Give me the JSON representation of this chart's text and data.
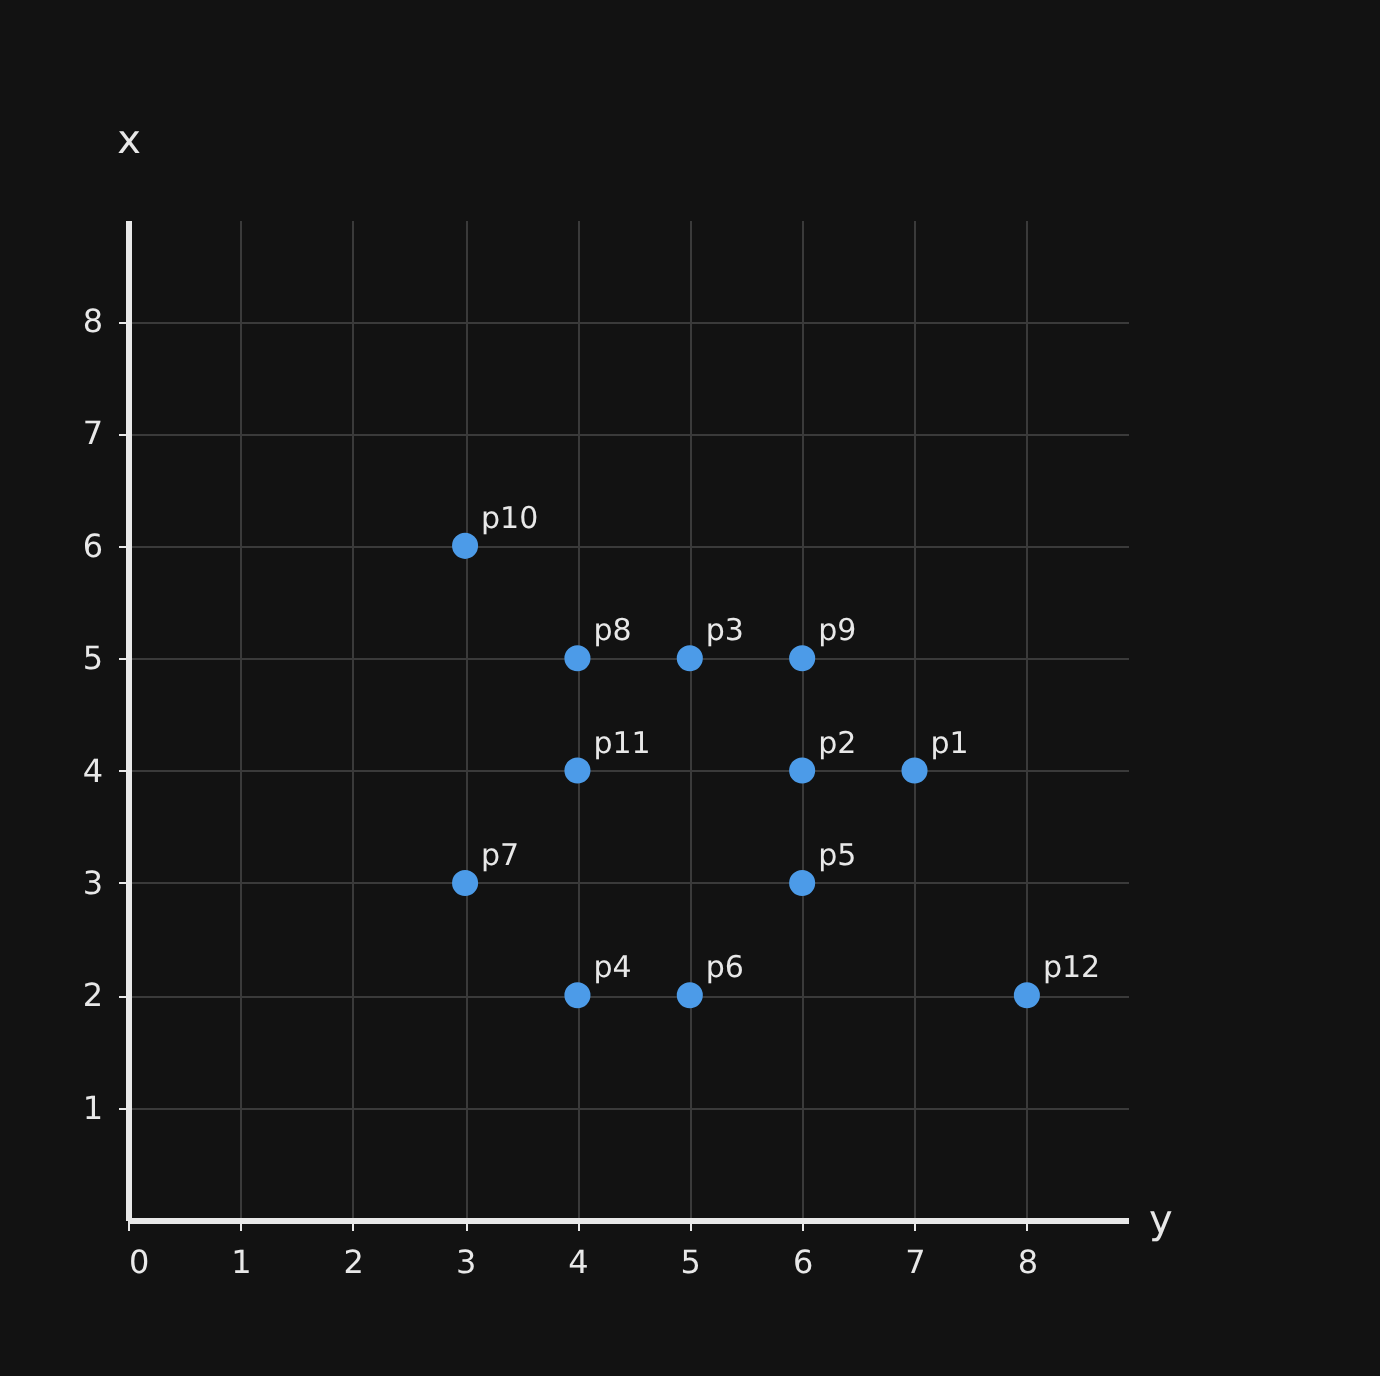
{
  "chart_data": {
    "type": "scatter",
    "xlabel": "y",
    "ylabel": "x",
    "x": [
      7,
      6,
      5,
      4,
      6,
      5,
      3,
      4,
      6,
      3,
      4,
      8
    ],
    "series": [
      {
        "color": "#4c9be8",
        "values": [
          4,
          4,
          5,
          2,
          3,
          2,
          3,
          5,
          5,
          6,
          4,
          2
        ]
      }
    ],
    "annotations": [
      {
        "text": "p1",
        "x": 7,
        "y": 4
      },
      {
        "text": "p2",
        "x": 6,
        "y": 4
      },
      {
        "text": "p3",
        "x": 5,
        "y": 5
      },
      {
        "text": "p4",
        "x": 4,
        "y": 2
      },
      {
        "text": "p5",
        "x": 6,
        "y": 3
      },
      {
        "text": "p6",
        "x": 5,
        "y": 2
      },
      {
        "text": "p7",
        "x": 3,
        "y": 3
      },
      {
        "text": "p8",
        "x": 4,
        "y": 5
      },
      {
        "text": "p9",
        "x": 6,
        "y": 5
      },
      {
        "text": "p10",
        "x": 3,
        "y": 6
      },
      {
        "text": "p11",
        "x": 4,
        "y": 4
      },
      {
        "text": "p12",
        "x": 8,
        "y": 2
      }
    ],
    "xlim": [
      0,
      8.9
    ],
    "ylim": [
      0,
      8.9
    ],
    "xticks": [
      0,
      1,
      2,
      3,
      4,
      5,
      6,
      7,
      8
    ],
    "yticks": [
      1,
      2,
      3,
      4,
      5,
      6,
      7,
      8
    ],
    "grid": true,
    "marker": "circle"
  }
}
